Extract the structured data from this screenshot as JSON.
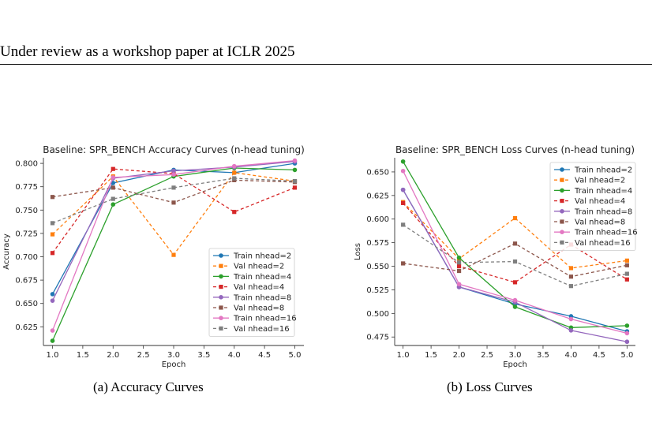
{
  "page": {
    "header": "Under review as a workshop paper at ICLR 2025",
    "captions": [
      "(a)  Accuracy Curves",
      "(b)  Loss Curves"
    ]
  },
  "chart_data": [
    {
      "type": "line",
      "title": "Baseline: SPR_BENCH Accuracy Curves (n-head tuning)",
      "xlabel": "Epoch",
      "ylabel": "Accuracy",
      "x": [
        1,
        2,
        3,
        4,
        5
      ],
      "xticks": [
        "1.0",
        "1.5",
        "2.0",
        "2.5",
        "3.0",
        "3.5",
        "4.0",
        "4.5",
        "5.0"
      ],
      "yticks": [
        "0.625",
        "0.650",
        "0.675",
        "0.700",
        "0.725",
        "0.750",
        "0.775",
        "0.800"
      ],
      "xlim": [
        0.85,
        5.15
      ],
      "ylim": [
        0.605,
        0.806
      ],
      "legend": "lower-right",
      "series": [
        {
          "name": "Train nhead=2",
          "color": "#1f77b4",
          "dashed": false,
          "marker": "circle",
          "values": [
            0.66,
            0.779,
            0.793,
            0.79,
            0.8
          ]
        },
        {
          "name": "Val nhead=2",
          "color": "#ff7f0e",
          "dashed": true,
          "marker": "square",
          "values": [
            0.724,
            0.786,
            0.702,
            0.79,
            0.781
          ]
        },
        {
          "name": "Train nhead=4",
          "color": "#2ca02c",
          "dashed": false,
          "marker": "circle",
          "values": [
            0.61,
            0.756,
            0.786,
            0.795,
            0.793
          ]
        },
        {
          "name": "Val nhead=4",
          "color": "#d62728",
          "dashed": true,
          "marker": "square",
          "values": [
            0.704,
            0.794,
            0.789,
            0.748,
            0.774
          ]
        },
        {
          "name": "Train nhead=8",
          "color": "#9467bd",
          "dashed": false,
          "marker": "circle",
          "values": [
            0.653,
            0.784,
            0.792,
            0.796,
            0.802
          ]
        },
        {
          "name": "Val nhead=8",
          "color": "#8c564b",
          "dashed": true,
          "marker": "square",
          "values": [
            0.764,
            0.774,
            0.758,
            0.782,
            0.78
          ]
        },
        {
          "name": "Train nhead=16",
          "color": "#e377c2",
          "dashed": false,
          "marker": "circle",
          "values": [
            0.621,
            0.785,
            0.788,
            0.797,
            0.803
          ]
        },
        {
          "name": "Val nhead=16",
          "color": "#7f7f7f",
          "dashed": true,
          "marker": "square",
          "values": [
            0.736,
            0.762,
            0.774,
            0.784,
            0.781
          ]
        }
      ]
    },
    {
      "type": "line",
      "title": "Baseline: SPR_BENCH Loss Curves (n-head tuning)",
      "xlabel": "Epoch",
      "ylabel": "Loss",
      "x": [
        1,
        2,
        3,
        4,
        5
      ],
      "xticks": [
        "1.0",
        "1.5",
        "2.0",
        "2.5",
        "3.0",
        "3.5",
        "4.0",
        "4.5",
        "5.0"
      ],
      "yticks": [
        "0.475",
        "0.500",
        "0.525",
        "0.550",
        "0.575",
        "0.600",
        "0.625",
        "0.650"
      ],
      "xlim": [
        0.85,
        5.15
      ],
      "ylim": [
        0.466,
        0.665
      ],
      "legend": "upper-right",
      "series": [
        {
          "name": "Train nhead=2",
          "color": "#1f77b4",
          "dashed": false,
          "marker": "circle",
          "values": [
            0.631,
            0.528,
            0.51,
            0.497,
            0.481
          ]
        },
        {
          "name": "Val nhead=2",
          "color": "#ff7f0e",
          "dashed": true,
          "marker": "square",
          "values": [
            0.618,
            0.558,
            0.601,
            0.548,
            0.556
          ]
        },
        {
          "name": "Train nhead=4",
          "color": "#2ca02c",
          "dashed": false,
          "marker": "circle",
          "values": [
            0.661,
            0.559,
            0.507,
            0.485,
            0.487
          ]
        },
        {
          "name": "Val nhead=4",
          "color": "#d62728",
          "dashed": true,
          "marker": "square",
          "values": [
            0.617,
            0.55,
            0.533,
            0.573,
            0.536
          ]
        },
        {
          "name": "Train nhead=8",
          "color": "#9467bd",
          "dashed": false,
          "marker": "circle",
          "values": [
            0.631,
            0.528,
            0.512,
            0.482,
            0.47
          ]
        },
        {
          "name": "Val nhead=8",
          "color": "#8c564b",
          "dashed": true,
          "marker": "square",
          "values": [
            0.553,
            0.545,
            0.574,
            0.539,
            0.551
          ]
        },
        {
          "name": "Train nhead=16",
          "color": "#e377c2",
          "dashed": false,
          "marker": "circle",
          "values": [
            0.651,
            0.531,
            0.514,
            0.494,
            0.479
          ]
        },
        {
          "name": "Val nhead=16",
          "color": "#7f7f7f",
          "dashed": true,
          "marker": "square",
          "values": [
            0.594,
            0.554,
            0.555,
            0.529,
            0.542
          ]
        }
      ]
    }
  ]
}
